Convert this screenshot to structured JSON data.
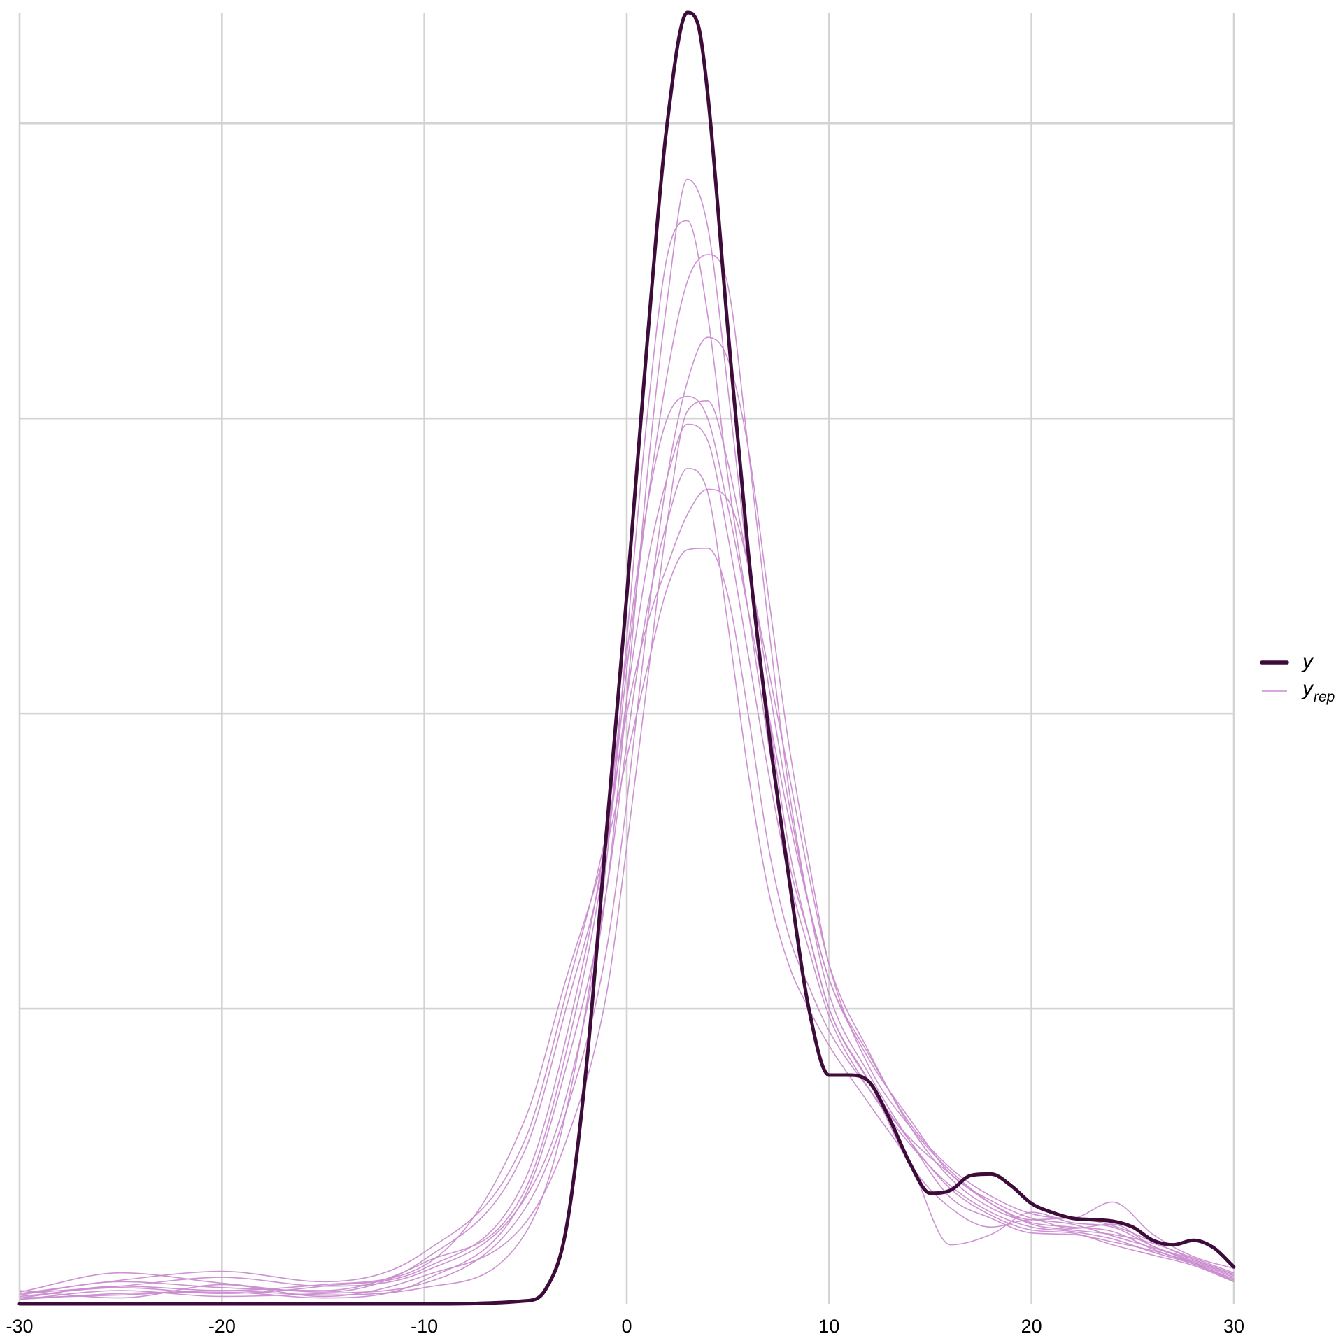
{
  "chart_data": {
    "type": "line",
    "title": "",
    "xlabel": "",
    "ylabel": "",
    "xlim": [
      -30,
      30
    ],
    "ylim": [
      0,
      0.0875
    ],
    "x_ticks": [
      -30,
      -20,
      -10,
      0,
      10,
      20,
      30
    ],
    "x_tick_labels": [
      "-30",
      "-20",
      "-10",
      "0",
      "10",
      "20",
      "30"
    ],
    "y_gridlines": [
      0.02,
      0.04,
      0.06,
      0.08
    ],
    "y_tick_labels_shown": false,
    "grid": true,
    "legend": {
      "placement": "right",
      "entries": [
        {
          "label": "y",
          "color": "#3d0c3a",
          "style": "thick"
        },
        {
          "label": "y",
          "subscript": "rep",
          "color": "#c98ccf",
          "style": "thin"
        }
      ]
    },
    "series": [
      {
        "name": "y",
        "role": "observed",
        "color": "#3d0c3a",
        "x": [
          -30,
          -10,
          -5,
          -4,
          -3,
          -2,
          -1,
          0,
          1,
          2,
          3,
          3.5,
          4,
          5,
          6,
          7,
          8,
          9,
          10,
          11,
          12,
          13,
          14,
          15,
          16,
          17,
          18,
          19,
          20,
          21,
          22,
          23,
          24,
          25,
          26,
          27,
          28,
          29,
          30
        ],
        "y": [
          0,
          0,
          0.0002,
          0.001,
          0.005,
          0.016,
          0.032,
          0.048,
          0.065,
          0.08,
          0.0875,
          0.0868,
          0.082,
          0.066,
          0.051,
          0.039,
          0.029,
          0.02,
          0.0155,
          0.0155,
          0.015,
          0.0125,
          0.0095,
          0.0075,
          0.0077,
          0.0087,
          0.0088,
          0.008,
          0.0068,
          0.0062,
          0.0058,
          0.0057,
          0.0056,
          0.0052,
          0.0043,
          0.004,
          0.0043,
          0.0038,
          0.0025
        ]
      }
    ],
    "replicates": {
      "name": "yrep",
      "role": "replicated",
      "color": "#c98ccf",
      "draws": [
        {
          "x": [
            -30,
            -25,
            -20,
            -15,
            -10,
            -5,
            -3,
            -1,
            0,
            1,
            2,
            3,
            4,
            5,
            6,
            7,
            8,
            9,
            10,
            12,
            14,
            16,
            18,
            20,
            22,
            24,
            26,
            28,
            30
          ],
          "y": [
            0.0007,
            0.0012,
            0.0018,
            0.0012,
            0.0022,
            0.0072,
            0.014,
            0.028,
            0.041,
            0.056,
            0.068,
            0.0762,
            0.073,
            0.062,
            0.05,
            0.04,
            0.031,
            0.025,
            0.02,
            0.015,
            0.0095,
            0.0065,
            0.0052,
            0.0057,
            0.0051,
            0.0054,
            0.0039,
            0.003,
            0.002
          ]
        },
        {
          "x": [
            -30,
            -25,
            -20,
            -15,
            -10,
            -5,
            -3,
            -1,
            0,
            1,
            2,
            3,
            4,
            5,
            6,
            7,
            8,
            9,
            10,
            12,
            14,
            16,
            18,
            20,
            22,
            24,
            26,
            28,
            30
          ],
          "y": [
            0.0004,
            0.0006,
            0.0009,
            0.0006,
            0.0011,
            0.0048,
            0.013,
            0.03,
            0.045,
            0.06,
            0.071,
            0.0734,
            0.067,
            0.056,
            0.047,
            0.038,
            0.03,
            0.025,
            0.02,
            0.015,
            0.011,
            0.0078,
            0.006,
            0.005,
            0.0048,
            0.004,
            0.0033,
            0.0026,
            0.0015
          ]
        },
        {
          "x": [
            -30,
            -25,
            -20,
            -15,
            -10,
            -5,
            -3,
            -1,
            0,
            1,
            2,
            3,
            4,
            5,
            6,
            7,
            8,
            9,
            10,
            12,
            14,
            16,
            18,
            20,
            22,
            24,
            26,
            28,
            30
          ],
          "y": [
            0.0006,
            0.0015,
            0.0011,
            0.0009,
            0.0028,
            0.0078,
            0.017,
            0.031,
            0.043,
            0.054,
            0.063,
            0.0693,
            0.0711,
            0.069,
            0.058,
            0.046,
            0.035,
            0.027,
            0.021,
            0.0155,
            0.011,
            0.0072,
            0.0058,
            0.0048,
            0.0047,
            0.0042,
            0.0036,
            0.0028,
            0.0018
          ]
        },
        {
          "x": [
            -30,
            -25,
            -20,
            -15,
            -10,
            -5,
            -3,
            -1,
            0,
            1,
            2,
            3,
            4,
            5,
            6,
            7,
            8,
            9,
            10,
            12,
            14,
            16,
            18,
            20,
            22,
            24,
            26,
            28,
            30
          ],
          "y": [
            0.0003,
            0.0009,
            0.0005,
            0.0007,
            0.0014,
            0.0065,
            0.013,
            0.024,
            0.034,
            0.046,
            0.056,
            0.0625,
            0.0655,
            0.064,
            0.058,
            0.048,
            0.038,
            0.03,
            0.023,
            0.016,
            0.012,
            0.009,
            0.0068,
            0.0054,
            0.005,
            0.0047,
            0.0041,
            0.0031,
            0.0021
          ]
        },
        {
          "x": [
            -30,
            -25,
            -20,
            -15,
            -10,
            -5,
            -3,
            -1,
            0,
            1,
            2,
            3,
            4,
            5,
            6,
            7,
            8,
            9,
            10,
            12,
            14,
            16,
            18,
            20,
            22,
            24,
            26,
            28,
            30
          ],
          "y": [
            0.0009,
            0.0004,
            0.0013,
            0.0005,
            0.0019,
            0.0055,
            0.011,
            0.021,
            0.031,
            0.042,
            0.053,
            0.0605,
            0.0612,
            0.057,
            0.05,
            0.043,
            0.036,
            0.029,
            0.023,
            0.017,
            0.012,
            0.0085,
            0.0065,
            0.0055,
            0.0052,
            0.0049,
            0.0037,
            0.0027,
            0.0016
          ]
        },
        {
          "x": [
            -30,
            -25,
            -20,
            -15,
            -10,
            -5,
            -3,
            -1,
            0,
            1,
            2,
            3,
            4,
            5,
            6,
            7,
            8,
            9,
            10,
            12,
            14,
            16,
            18,
            20,
            22,
            24,
            26,
            28,
            30
          ],
          "y": [
            0.0005,
            0.0011,
            0.0007,
            0.0012,
            0.0024,
            0.0085,
            0.018,
            0.032,
            0.044,
            0.054,
            0.06,
            0.0615,
            0.06,
            0.054,
            0.047,
            0.04,
            0.033,
            0.027,
            0.022,
            0.0165,
            0.0125,
            0.0088,
            0.007,
            0.0058,
            0.0054,
            0.0046,
            0.0038,
            0.0029,
            0.0019
          ]
        },
        {
          "x": [
            -30,
            -25,
            -20,
            -15,
            -10,
            -5,
            -3,
            -1,
            0,
            1,
            2,
            3,
            4,
            5,
            6,
            7,
            8,
            9,
            10,
            12,
            14,
            16,
            18,
            20,
            22,
            24,
            26,
            28,
            30
          ],
          "y": [
            0.0008,
            0.0021,
            0.0014,
            0.0008,
            0.003,
            0.0105,
            0.02,
            0.031,
            0.041,
            0.05,
            0.056,
            0.0596,
            0.0585,
            0.052,
            0.044,
            0.036,
            0.029,
            0.024,
            0.0195,
            0.0145,
            0.0108,
            0.008,
            0.0062,
            0.0052,
            0.0049,
            0.0044,
            0.0035,
            0.0027,
            0.0017
          ]
        },
        {
          "x": [
            -30,
            -25,
            -20,
            -15,
            -10,
            -5,
            -3,
            -1,
            0,
            1,
            2,
            3,
            4,
            5,
            6,
            7,
            8,
            9,
            10,
            12,
            14,
            16,
            18,
            20,
            22,
            24,
            26,
            28,
            30
          ],
          "y": [
            0.0003,
            0.0007,
            0.0008,
            0.0004,
            0.0016,
            0.0074,
            0.016,
            0.028,
            0.038,
            0.047,
            0.053,
            0.0566,
            0.055,
            0.046,
            0.036,
            0.028,
            0.023,
            0.02,
            0.0175,
            0.0135,
            0.0095,
            0.004,
            0.0047,
            0.0062,
            0.0055,
            0.0052,
            0.0039,
            0.0028,
            0.0015
          ]
        },
        {
          "x": [
            -30,
            -25,
            -20,
            -15,
            -10,
            -5,
            -3,
            -1,
            0,
            1,
            2,
            3,
            4,
            5,
            6,
            7,
            8,
            9,
            10,
            12,
            14,
            16,
            18,
            20,
            22,
            24,
            26,
            28,
            30
          ],
          "y": [
            0.0007,
            0.0016,
            0.0022,
            0.0015,
            0.0035,
            0.0112,
            0.021,
            0.032,
            0.04,
            0.046,
            0.05,
            0.0535,
            0.0552,
            0.0545,
            0.05,
            0.042,
            0.034,
            0.027,
            0.022,
            0.0168,
            0.0122,
            0.0092,
            0.0073,
            0.0061,
            0.0058,
            0.0069,
            0.0047,
            0.0032,
            0.0024
          ]
        },
        {
          "x": [
            -30,
            -25,
            -20,
            -15,
            -10,
            -5,
            -3,
            -1,
            0,
            1,
            2,
            3,
            4,
            5,
            6,
            7,
            8,
            9,
            10,
            12,
            14,
            16,
            18,
            20,
            22,
            24,
            26,
            28,
            30
          ],
          "y": [
            0.0004,
            0.0012,
            0.0009,
            0.0013,
            0.0026,
            0.0126,
            0.022,
            0.031,
            0.037,
            0.043,
            0.0485,
            0.0511,
            0.0512,
            0.048,
            0.04,
            0.031,
            0.025,
            0.0215,
            0.0185,
            0.0145,
            0.0112,
            0.0088,
            0.0068,
            0.0057,
            0.0058,
            0.0053,
            0.0042,
            0.003,
            0.002
          ]
        }
      ]
    }
  }
}
